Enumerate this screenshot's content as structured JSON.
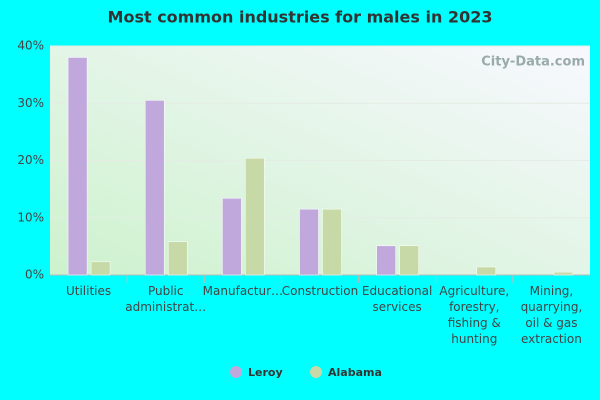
{
  "chart_data": {
    "type": "bar",
    "title": "Most common industries for males in 2023",
    "watermark": "City-Data.com",
    "categories": [
      "Utilities",
      "Public administrat…",
      "Manufactur…",
      "Construction",
      "Educational services",
      "Agriculture, forestry, fishing & hunting",
      "Mining, quarrying, oil & gas extraction"
    ],
    "series": [
      {
        "name": "Leroy",
        "color": "#c0a8dc",
        "values": [
          38,
          30.5,
          13.4,
          11.5,
          5.1,
          0,
          0
        ]
      },
      {
        "name": "Alabama",
        "color": "#c6d9a6",
        "values": [
          2.3,
          5.8,
          20.4,
          11.5,
          5.1,
          1.4,
          0.5
        ]
      }
    ],
    "ylim": [
      0,
      40
    ],
    "yticks": [
      {
        "value": 0,
        "label": "0%"
      },
      {
        "value": 10,
        "label": "10%"
      },
      {
        "value": 20,
        "label": "20%"
      },
      {
        "value": 30,
        "label": "30%"
      },
      {
        "value": 40,
        "label": "40%"
      }
    ],
    "grid": true
  }
}
